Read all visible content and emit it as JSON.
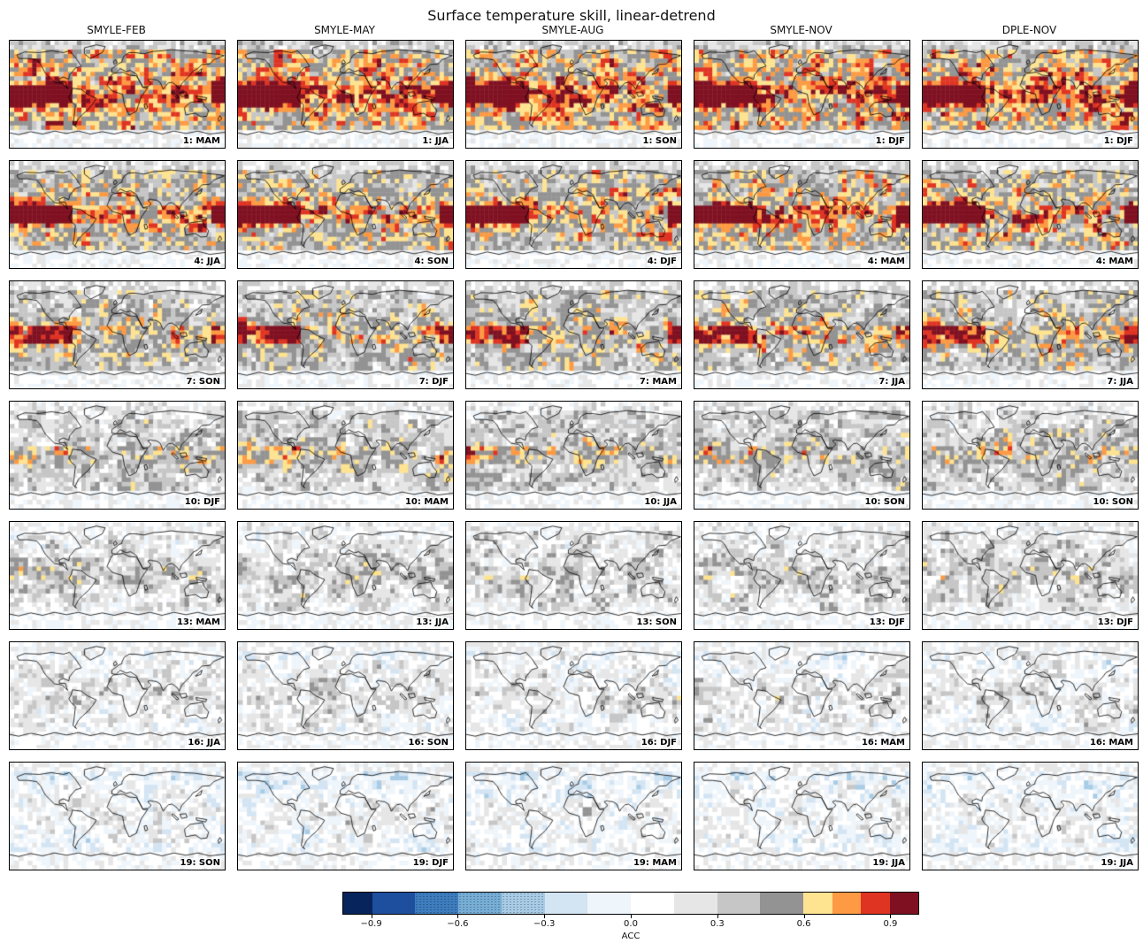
{
  "title": "Surface temperature skill, linear-detrend",
  "chart_data": {
    "type": "heatmap",
    "subtype": "grid-of-global-maps",
    "title": "Surface temperature skill, linear-detrend",
    "map_projection": "equirectangular",
    "grid": {
      "rows": 7,
      "cols": 5
    },
    "columns": [
      "SMYLE-FEB",
      "SMYLE-MAY",
      "SMYLE-AUG",
      "SMYLE-NOV",
      "DPLE-NOV"
    ],
    "lead_months": [
      1,
      4,
      7,
      10,
      13,
      16,
      19
    ],
    "panel_labels": [
      [
        "1: MAM",
        "1: JJA",
        "1: SON",
        "1: DJF",
        "1: DJF"
      ],
      [
        "4: JJA",
        "4: SON",
        "4: DJF",
        "4: MAM",
        "4: MAM"
      ],
      [
        "7: SON",
        "7: DJF",
        "7: MAM",
        "7: JJA",
        "7: JJA"
      ],
      [
        "10: DJF",
        "10: MAM",
        "10: JJA",
        "10: SON",
        "10: SON"
      ],
      [
        "13: MAM",
        "13: JJA",
        "13: SON",
        "13: DJF",
        "13: DJF"
      ],
      [
        "16: JJA",
        "16: SON",
        "16: DJF",
        "16: MAM",
        "16: MAM"
      ],
      [
        "19: SON",
        "19: DJF",
        "19: MAM",
        "19: JJA",
        "19: JJA"
      ]
    ],
    "colorbar": {
      "label": "ACC",
      "orientation": "horizontal",
      "range": [
        -1,
        1
      ],
      "levels": [
        -1,
        -0.9,
        -0.75,
        -0.6,
        -0.45,
        -0.3,
        -0.15,
        0,
        0.15,
        0.3,
        0.45,
        0.6,
        0.7,
        0.8,
        0.9,
        1
      ],
      "colors": [
        "#08245c",
        "#1d4f9e",
        "#3d7dbf",
        "#77aed6",
        "#a8cce6",
        "#d3e4f3",
        "#eef5fb",
        "#ffffff",
        "#e6e6e6",
        "#c6c6c6",
        "#939393",
        "#fee391",
        "#fd9a43",
        "#e03423",
        "#7f1021"
      ],
      "hatched_segments": [
        2,
        3,
        4
      ],
      "ticks": [
        -0.9,
        -0.6,
        -0.3,
        0,
        0.3,
        0.6,
        0.9
      ],
      "tick_labels": [
        "−0.9",
        "−0.6",
        "−0.3",
        "0.0",
        "0.3",
        "0.6",
        "0.9"
      ]
    },
    "pattern_notes": "Anomaly correlation coefficient of surface temperature per grid cell. Highest skill (orange/dark red, ACC > 0.6) appears at lead 1, strongest along the tropical Pacific; skill decays with lead time so rows 13–19 are mostly white/gray with sparse pale-blue cells."
  }
}
